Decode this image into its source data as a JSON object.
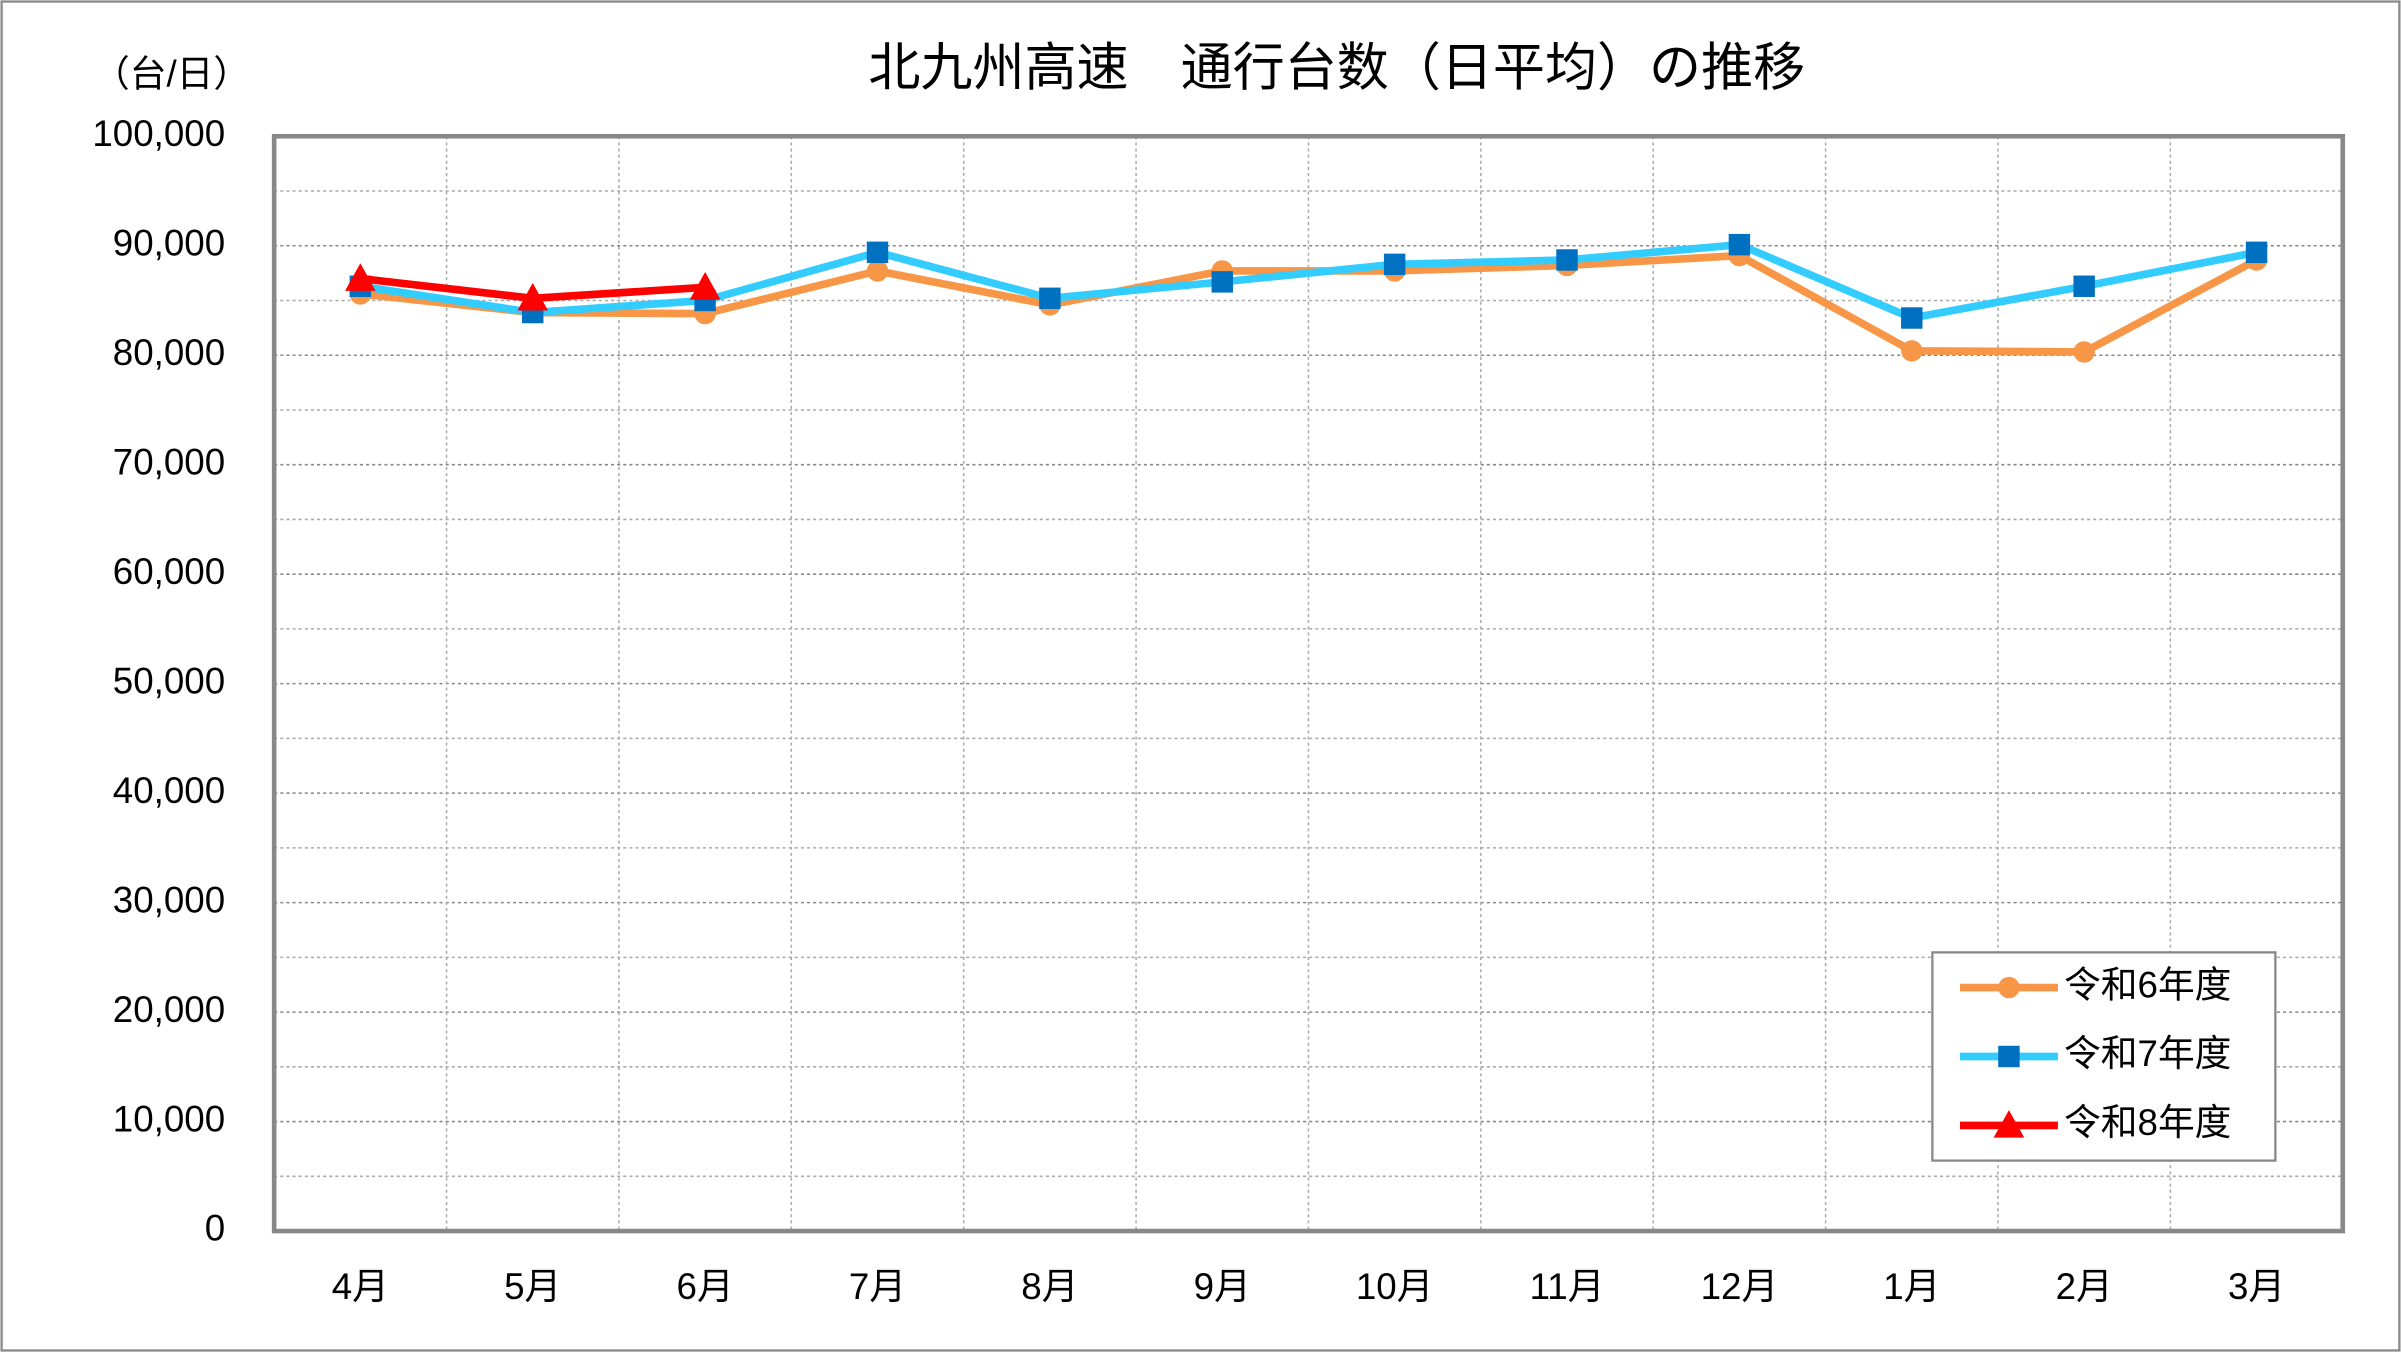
{
  "chart_data": {
    "type": "line",
    "title": "北九州高速　通行台数（日平均）の推移",
    "y_label": "（台/日）",
    "categories": [
      "4月",
      "5月",
      "6月",
      "7月",
      "8月",
      "9月",
      "10月",
      "11月",
      "12月",
      "1月",
      "2月",
      "3月"
    ],
    "series": [
      {
        "name": "令和6年度",
        "color": "#f79646",
        "marker": "circle",
        "values": [
          85600,
          83900,
          83800,
          87700,
          84600,
          87700,
          87700,
          88200,
          89100,
          80400,
          80300,
          88700
        ]
      },
      {
        "name": "令和7年度",
        "color": "#33ccff",
        "marker": "square",
        "marker_color": "#0070c0",
        "values": [
          86300,
          83900,
          85000,
          89400,
          85200,
          86700,
          88300,
          88700,
          90100,
          83400,
          86300,
          89400
        ]
      },
      {
        "name": "令和8年度",
        "color": "#ff0000",
        "marker": "triangle",
        "values": [
          87000,
          85200,
          86200,
          null,
          null,
          null,
          null,
          null,
          null,
          null,
          null,
          null
        ]
      }
    ],
    "ylim": [
      0,
      100000
    ],
    "yticks": [
      0,
      {
        "value": 10000,
        "label": "10,000"
      },
      {
        "value": 20000,
        "label": "20,000"
      },
      {
        "value": 30000,
        "label": "30,000"
      },
      {
        "value": 40000,
        "label": "40,000"
      },
      {
        "value": 50000,
        "label": "50,000"
      },
      {
        "value": 60000,
        "label": "60,000"
      },
      {
        "value": 70000,
        "label": "70,000"
      },
      {
        "value": 80000,
        "label": "80,000"
      },
      {
        "value": 90000,
        "label": "90,000"
      },
      {
        "value": 100000,
        "label": "100,000"
      }
    ],
    "grid": true,
    "legend": "lower right"
  }
}
